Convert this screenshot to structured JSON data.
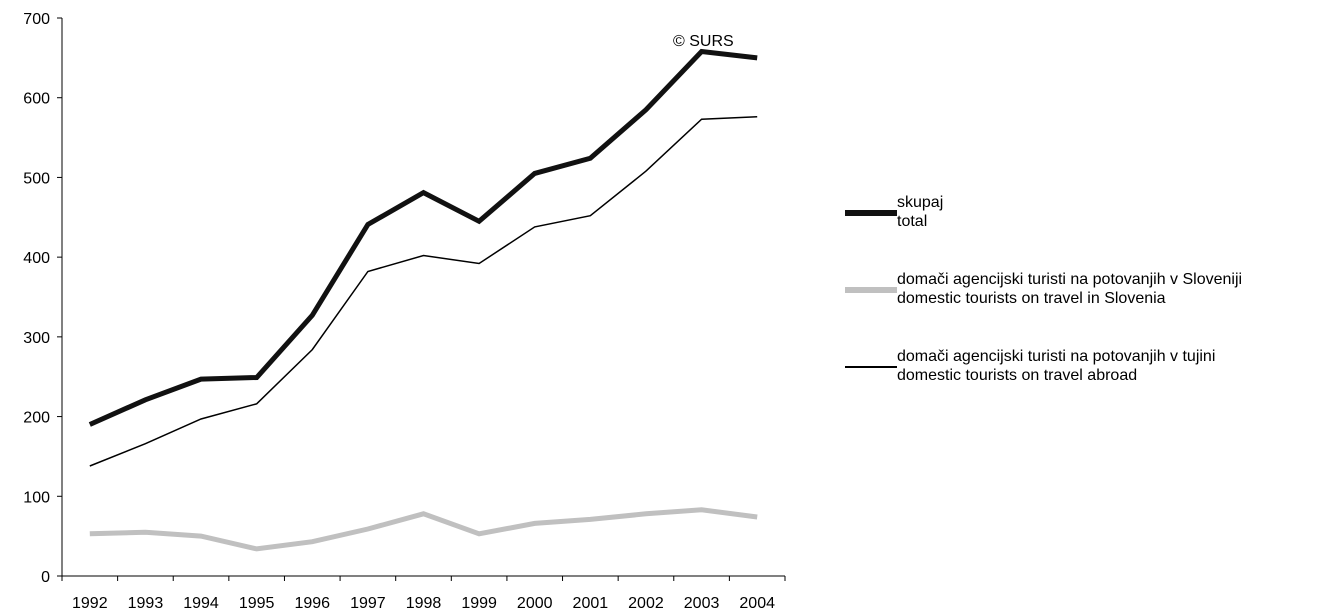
{
  "chart_data": {
    "type": "line",
    "x": [
      "1992",
      "1993",
      "1994",
      "1995",
      "1996",
      "1997",
      "1998",
      "1999",
      "2000",
      "2001",
      "2002",
      "2003",
      "2004"
    ],
    "ylim": [
      0,
      700
    ],
    "yticks": [
      "0",
      "100",
      "200",
      "300",
      "400",
      "500",
      "600",
      "700"
    ],
    "grid": false,
    "legend_position": "right",
    "annotation": "© SURS",
    "series": [
      {
        "name": "skupaj",
        "name_en": "total",
        "color": "#111111",
        "width": "thick",
        "values": [
          190,
          221,
          247,
          249,
          327,
          441,
          481,
          445,
          505,
          524,
          585,
          658,
          650
        ]
      },
      {
        "name": "domači agencijski turisti na potovanjih v Sloveniji",
        "name_en": "domestic tourists on travel in Slovenia",
        "color": "#c0c0c0",
        "width": "thick",
        "values": [
          53,
          55,
          50,
          34,
          43,
          59,
          78,
          53,
          66,
          71,
          78,
          83,
          74
        ]
      },
      {
        "name": "domači agencijski turisti na potovanjih v tujini",
        "name_en": "domestic tourists on travel abroad",
        "color": "#000000",
        "width": "thin",
        "values": [
          138,
          166,
          197,
          216,
          284,
          382,
          402,
          392,
          438,
          452,
          508,
          573,
          576
        ]
      }
    ]
  }
}
